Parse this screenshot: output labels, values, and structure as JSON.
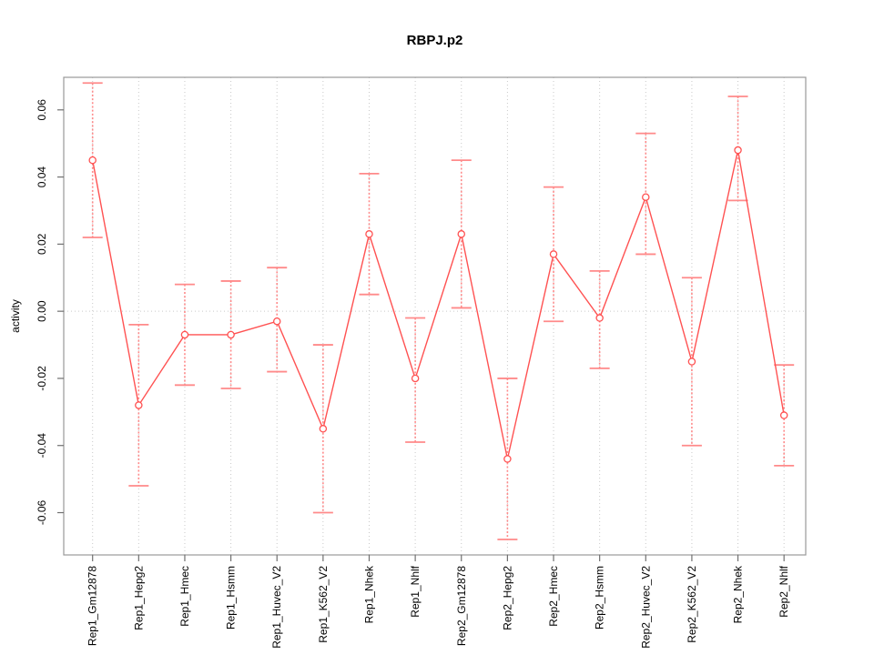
{
  "chart_data": {
    "type": "line",
    "title": "RBPJ.p2",
    "xlabel": "",
    "ylabel": "activity",
    "legend": "none",
    "marker": "open-circle",
    "error_bars": true,
    "categories": [
      "Rep1_Gm12878",
      "Rep1_Hepg2",
      "Rep1_Hmec",
      "Rep1_Hsmm",
      "Rep1_Huvec_V2",
      "Rep1_K562_V2",
      "Rep1_Nhek",
      "Rep1_Nhlf",
      "Rep2_Gm12878",
      "Rep2_Hepg2",
      "Rep2_Hmec",
      "Rep2_Hsmm",
      "Rep2_Huvec_V2",
      "Rep2_K562_V2",
      "Rep2_Nhek",
      "Rep2_Nhlf"
    ],
    "series": [
      {
        "name": "activity",
        "values": [
          0.045,
          -0.028,
          -0.007,
          -0.007,
          -0.003,
          -0.035,
          0.023,
          -0.02,
          0.023,
          -0.044,
          0.017,
          -0.002,
          0.034,
          -0.015,
          0.048,
          -0.031
        ],
        "ci_low": [
          0.022,
          -0.052,
          -0.022,
          -0.023,
          -0.018,
          -0.06,
          0.005,
          -0.039,
          0.001,
          -0.068,
          -0.003,
          -0.017,
          0.017,
          -0.04,
          0.033,
          -0.046
        ],
        "ci_high": [
          0.068,
          -0.004,
          0.008,
          0.009,
          0.013,
          -0.01,
          0.041,
          -0.002,
          0.045,
          -0.02,
          0.037,
          0.012,
          0.053,
          0.01,
          0.064,
          -0.016
        ]
      }
    ],
    "yticks": [
      0.06,
      0.04,
      0.02,
      0.0,
      -0.02,
      -0.04,
      -0.06
    ],
    "ytick_labels": [
      "0.06",
      "0.04",
      "0.02",
      "0.00",
      "-0.02",
      "-0.04",
      "-0.06"
    ],
    "ylim": [
      -0.0726,
      0.0697
    ],
    "grid": {
      "vertical_at_categories": true,
      "horizontal_at_zero": true,
      "style": "dotted"
    },
    "colors": {
      "series": "#ff5252",
      "error_bar": "#ff8a8a",
      "grid": "#c9c9c9",
      "axis_box": "#999999",
      "tick": "#707070",
      "text": "#000000",
      "background": "#ffffff"
    }
  }
}
